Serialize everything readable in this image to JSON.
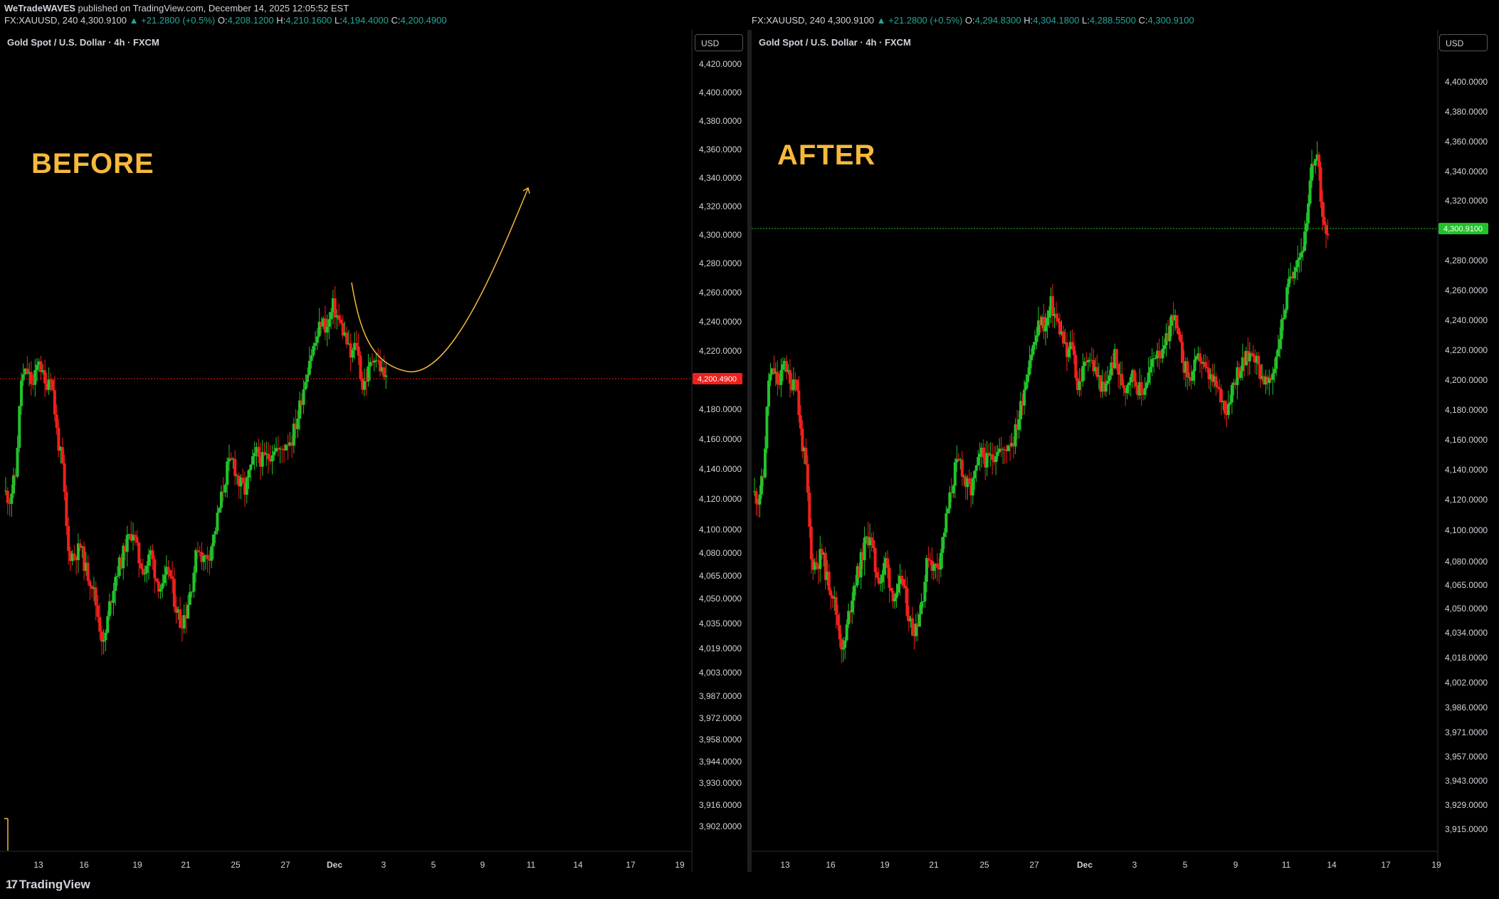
{
  "header": {
    "author": "WeTradeWAVES",
    "published": " published on TradingView.com, December 14, 2025 12:05:52 EST"
  },
  "left_ohlc": {
    "symbol": "FX:XAUUSD, 240",
    "last": "4,300.9100",
    "change": "▲ +21.2800 (+0.5%)",
    "o_label": "O:",
    "o": "4,208.1200",
    "h_label": "H:",
    "h": "4,210.1600",
    "l_label": "L:",
    "l": "4,194.4000",
    "c_label": "C:",
    "c": "4,200.4900"
  },
  "right_ohlc": {
    "symbol": "FX:XAUUSD, 240",
    "last": "4,300.9100",
    "change": "▲ +21.2800 (+0.5%)",
    "o_label": "O:",
    "o": "4,294.8300",
    "h_label": "H:",
    "h": "4,304.1800",
    "l_label": "L:",
    "l": "4,288.5500",
    "c_label": "C:",
    "c": "4,300.9100"
  },
  "left_panel": {
    "title": "Gold Spot / U.S. Dollar · 4h · FXCM",
    "currency": "USD",
    "label": "BEFORE"
  },
  "right_panel": {
    "title": "Gold Spot / U.S. Dollar · 4h · FXCM",
    "currency": "USD",
    "label": "AFTER"
  },
  "footer": {
    "brand": "TradingView"
  },
  "colors": {
    "up": "#22c32a",
    "down": "#f0201c",
    "annotation": "#f6b93b",
    "bg": "#000000",
    "axis_text": "#d1d4dc"
  },
  "chart_data": [
    {
      "type": "candlestick",
      "name": "BEFORE",
      "title": "Gold Spot / U.S. Dollar · 4h · FXCM",
      "x_ticks": [
        "13",
        "16",
        "19",
        "21",
        "25",
        "27",
        "Dec",
        "3",
        "5",
        "9",
        "11",
        "14",
        "17",
        "19"
      ],
      "y_ticks": [
        "4,420.0000",
        "4,400.0000",
        "4,380.0000",
        "4,360.0000",
        "4,340.0000",
        "4,320.0000",
        "4,300.0000",
        "4,280.0000",
        "4,260.0000",
        "4,240.0000",
        "4,220.0000",
        "4,200.0000",
        "4,180.0000",
        "4,160.0000",
        "4,140.0000",
        "4,120.0000",
        "4,100.0000",
        "4,080.0000",
        "4,065.0000",
        "4,050.0000",
        "4,035.0000",
        "4,019.0000",
        "4,003.0000",
        "3,987.0000",
        "3,972.0000",
        "3,958.0000",
        "3,944.0000",
        "3,930.0000",
        "3,916.0000",
        "3,902.0000"
      ],
      "last_price_label": "4,200.4900",
      "last_price": 4200.49,
      "close_path": [
        4125,
        4120,
        4135,
        4200,
        4205,
        4195,
        4215,
        4195,
        4205,
        4165,
        4140,
        4080,
        4078,
        4085,
        4068,
        4060,
        4040,
        4020,
        4045,
        4065,
        4075,
        4090,
        4098,
        4075,
        4068,
        4080,
        4062,
        4055,
        4070,
        4050,
        4035,
        4042,
        4060,
        4085,
        4075,
        4080,
        4100,
        4120,
        4140,
        4145,
        4130,
        4125,
        4140,
        4150,
        4145,
        4148,
        4155,
        4150,
        4158,
        4160,
        4175,
        4195,
        4215,
        4225,
        4240,
        4235,
        4250,
        4240,
        4230,
        4215,
        4225,
        4195,
        4205,
        4218,
        4208,
        4200
      ],
      "annotation": "projected curve: dip toward ~4,160 then rally toward ~4,330"
    },
    {
      "type": "candlestick",
      "name": "AFTER",
      "title": "Gold Spot / U.S. Dollar · 4h · FXCM",
      "x_ticks": [
        "13",
        "16",
        "19",
        "21",
        "25",
        "27",
        "Dec",
        "3",
        "5",
        "9",
        "11",
        "14",
        "17",
        "19"
      ],
      "y_ticks": [
        "4,400.0000",
        "4,380.0000",
        "4,360.0000",
        "4,340.0000",
        "4,320.0000",
        "4,300.0000",
        "4,280.0000",
        "4,260.0000",
        "4,240.0000",
        "4,220.0000",
        "4,200.0000",
        "4,180.0000",
        "4,160.0000",
        "4,140.0000",
        "4,120.0000",
        "4,100.0000",
        "4,080.0000",
        "4,065.0000",
        "4,050.0000",
        "4,034.0000",
        "4,018.0000",
        "4,002.0000",
        "3,986.0000",
        "3,971.0000",
        "3,957.0000",
        "3,943.0000",
        "3,929.0000",
        "3,915.0000"
      ],
      "last_price_label": "4,300.9100",
      "last_price": 4300.91,
      "close_path": [
        4125,
        4120,
        4135,
        4200,
        4205,
        4195,
        4215,
        4195,
        4205,
        4165,
        4140,
        4080,
        4078,
        4085,
        4068,
        4060,
        4040,
        4020,
        4045,
        4065,
        4075,
        4090,
        4098,
        4075,
        4068,
        4080,
        4062,
        4055,
        4070,
        4050,
        4035,
        4042,
        4060,
        4085,
        4075,
        4080,
        4100,
        4120,
        4140,
        4145,
        4130,
        4125,
        4140,
        4150,
        4145,
        4148,
        4155,
        4150,
        4158,
        4160,
        4175,
        4195,
        4215,
        4225,
        4240,
        4235,
        4250,
        4240,
        4230,
        4215,
        4225,
        4195,
        4205,
        4218,
        4208,
        4200,
        4190,
        4205,
        4215,
        4200,
        4195,
        4205,
        4198,
        4190,
        4200,
        4210,
        4222,
        4215,
        4230,
        4245,
        4225,
        4210,
        4200,
        4208,
        4215,
        4205,
        4200,
        4195,
        4188,
        4180,
        4195,
        4205,
        4210,
        4215,
        4220,
        4208,
        4200,
        4195,
        4210,
        4230,
        4250,
        4270,
        4280,
        4285,
        4300,
        4345,
        4350,
        4310,
        4300
      ]
    }
  ]
}
